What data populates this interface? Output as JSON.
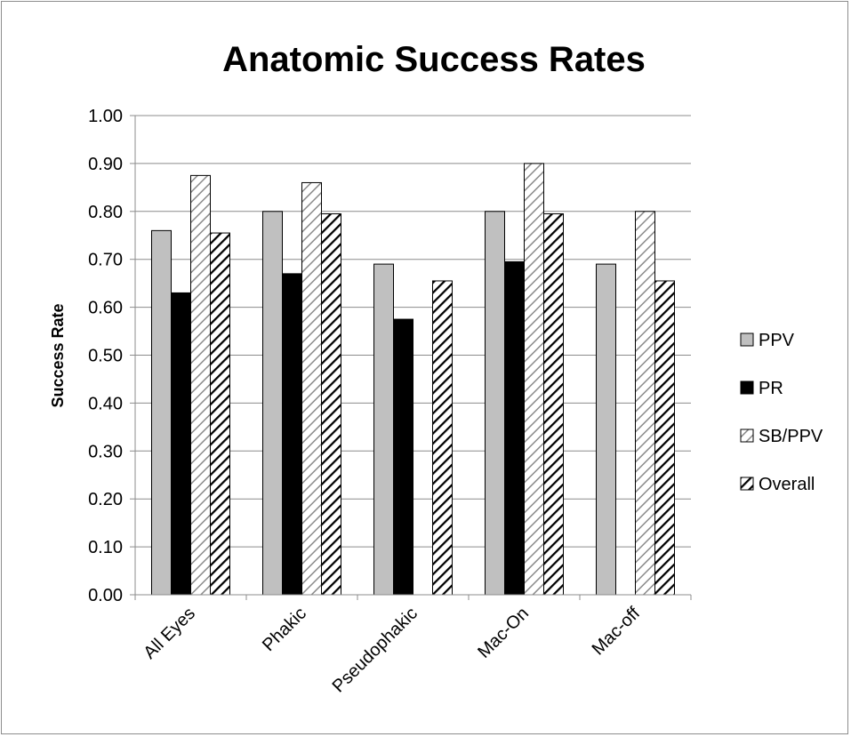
{
  "chart_data": {
    "type": "bar",
    "title": "Anatomic Success Rates",
    "xlabel": "",
    "ylabel": "Success Rate",
    "ylim": [
      0,
      1.0
    ],
    "yticks": [
      "0.00",
      "0.10",
      "0.20",
      "0.30",
      "0.40",
      "0.50",
      "0.60",
      "0.70",
      "0.80",
      "0.90",
      "1.00"
    ],
    "categories": [
      "All Eyes",
      "Phakic",
      "Pseudophakic",
      "Mac-On",
      "Mac-off"
    ],
    "series": [
      {
        "name": "PPV",
        "fill": "solid-light-gray",
        "color": "#c0c0c0",
        "values": [
          0.76,
          0.8,
          0.69,
          0.8,
          0.69
        ]
      },
      {
        "name": "PR",
        "fill": "solid-black",
        "color": "#000000",
        "values": [
          0.63,
          0.67,
          0.575,
          0.695,
          null
        ]
      },
      {
        "name": "SB/PPV",
        "fill": "light-diagonal-hatch",
        "color": "#a6a6a6",
        "values": [
          0.875,
          0.86,
          null,
          0.9,
          0.8
        ]
      },
      {
        "name": "Overall",
        "fill": "dark-diagonal-hatch",
        "color": "#000000",
        "values": [
          0.755,
          0.795,
          0.655,
          0.795,
          0.655
        ]
      }
    ],
    "grid": true,
    "legend_position": "right"
  }
}
